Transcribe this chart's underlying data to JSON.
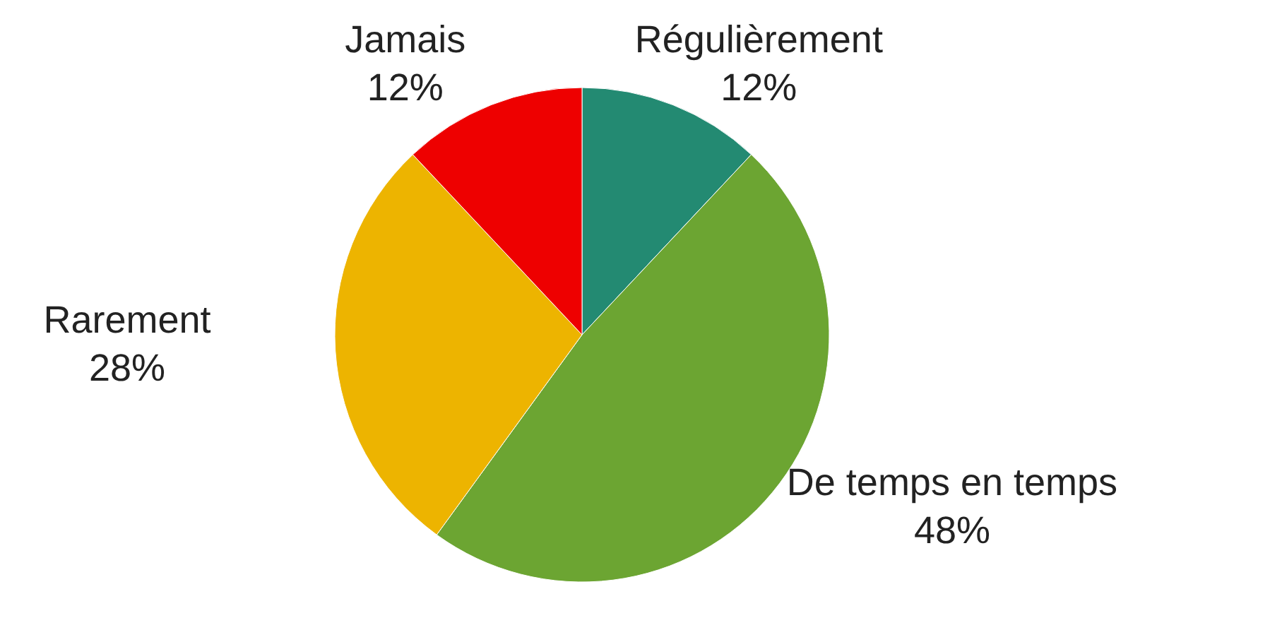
{
  "chart_data": {
    "type": "pie",
    "categories": [
      "Régulièrement",
      "De temps en temps",
      "Rarement",
      "Jamais"
    ],
    "values": [
      12,
      48,
      28,
      12
    ],
    "value_labels": [
      "12%",
      "48%",
      "28%",
      "12%"
    ],
    "colors": [
      "#238a72",
      "#6ca532",
      "#edb400",
      "#ee0000"
    ]
  }
}
